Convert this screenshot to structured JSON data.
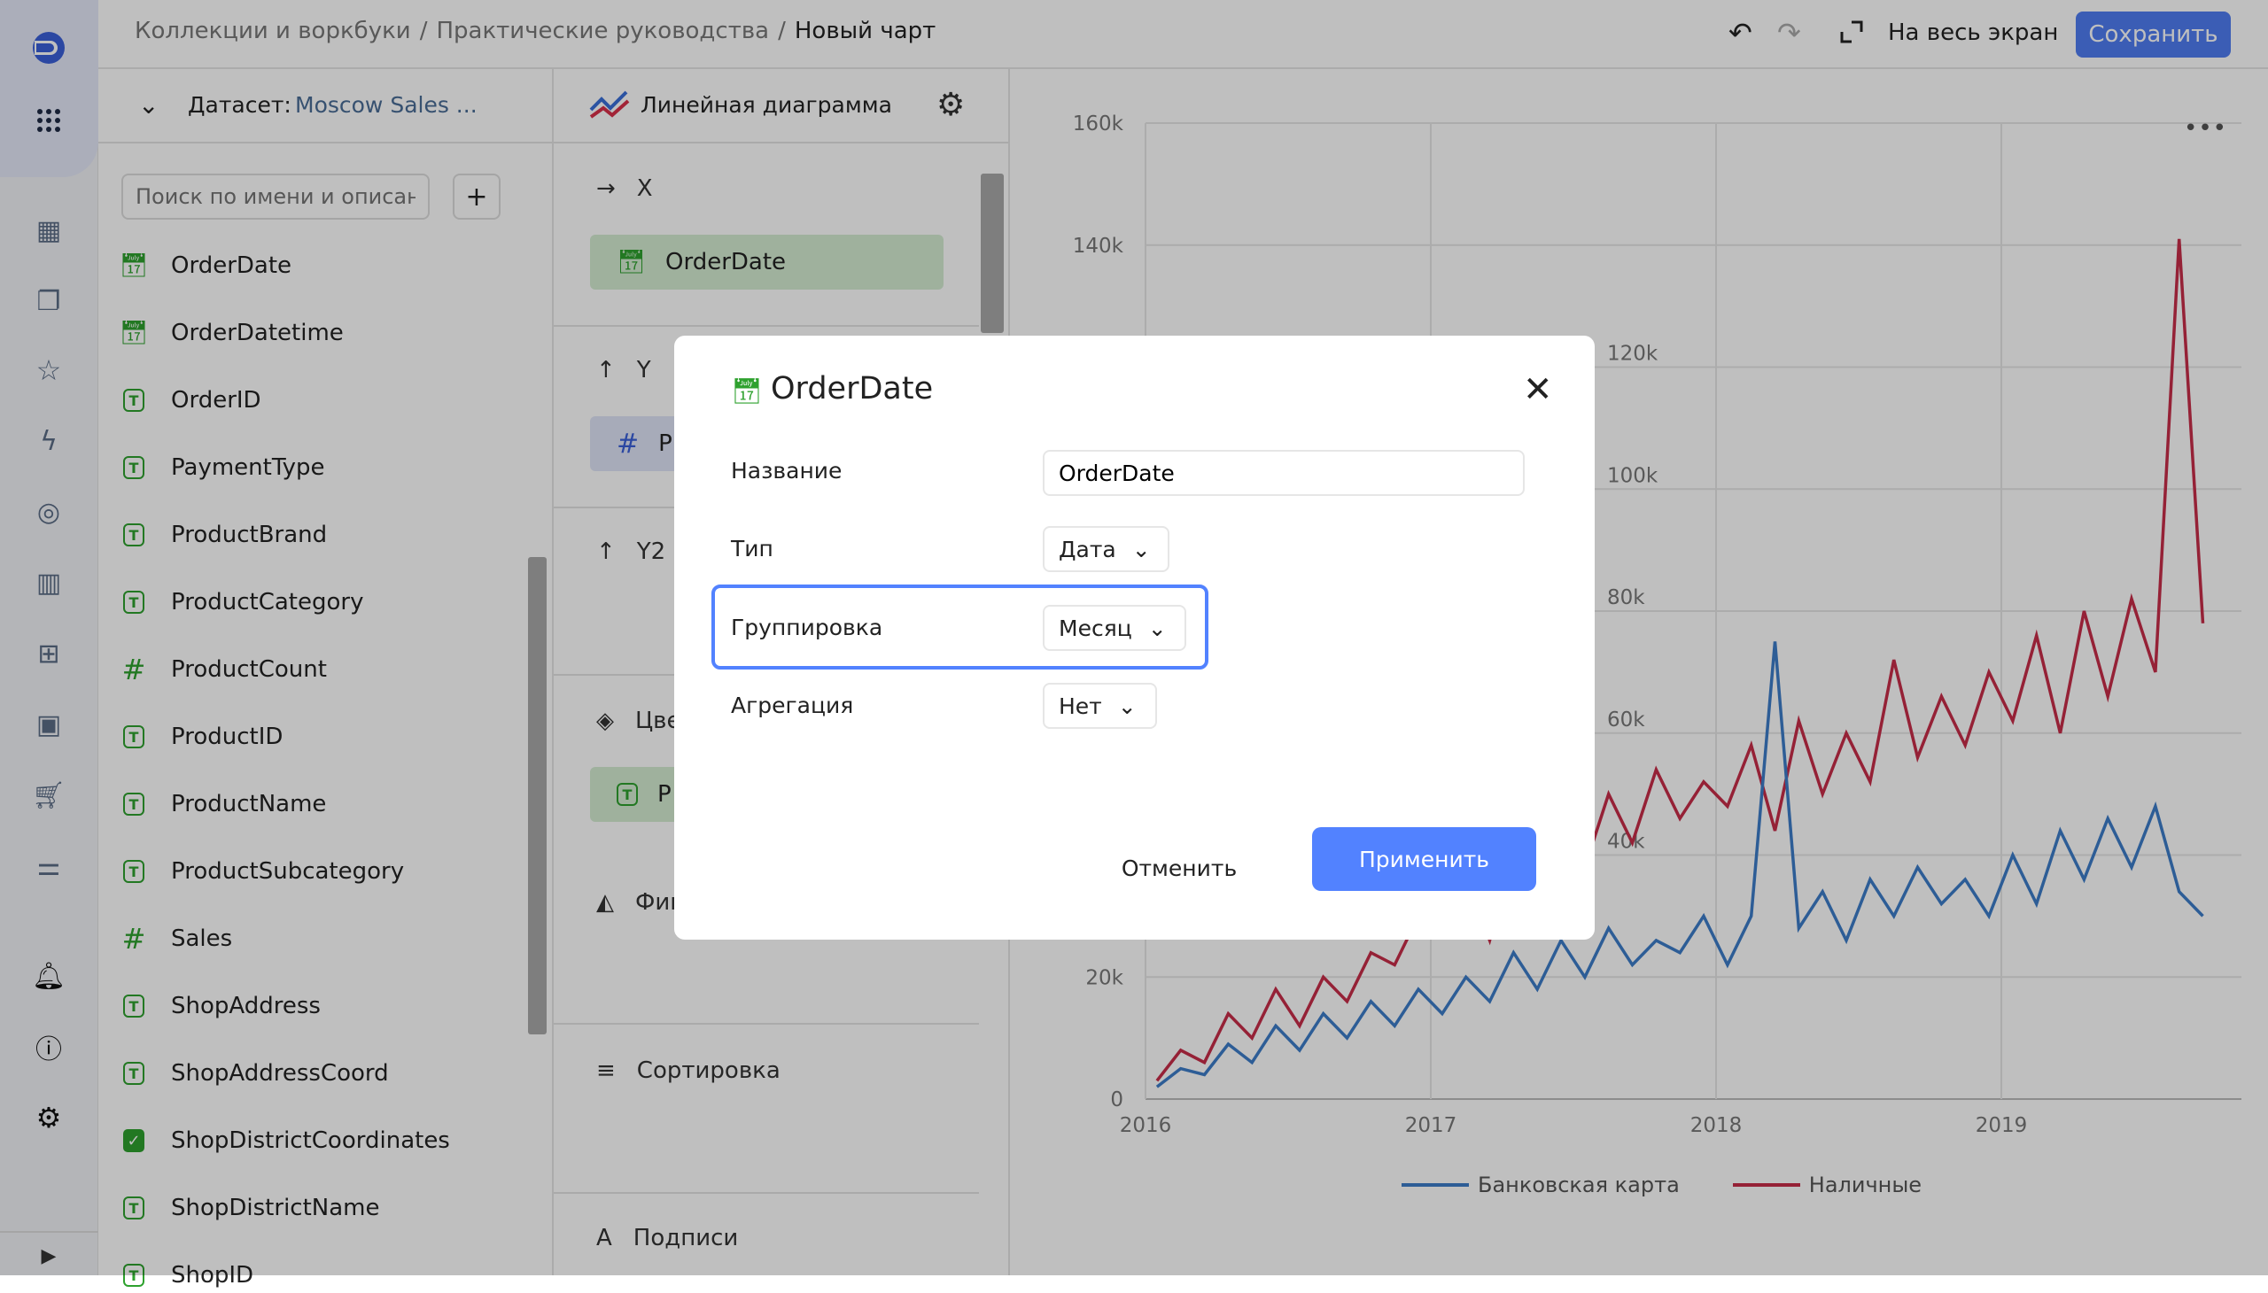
{
  "header": {
    "breadcrumbs": [
      "Коллекции и воркбуки",
      "Практические руководства",
      "Новый чарт"
    ],
    "fullscreen_label": "На весь экран",
    "save_label": "Сохранить"
  },
  "rail": {
    "icons": [
      "logo-icon",
      "apps-grid-icon",
      "dashboards-icon",
      "collections-icon",
      "favorites-icon",
      "lightning-icon",
      "connections-icon",
      "charts-icon",
      "datasets-icon",
      "folder-icon",
      "cart-icon",
      "settings-sliders-icon",
      "bell-icon",
      "help-icon",
      "gear-icon",
      "expand-icon"
    ]
  },
  "fields": {
    "dataset_label": "Датасет:",
    "dataset_name": "Moscow Sales ...",
    "search_placeholder": "Поиск по имени и описанию",
    "items": [
      {
        "name": "OrderDate",
        "type": "date"
      },
      {
        "name": "OrderDatetime",
        "type": "date"
      },
      {
        "name": "OrderID",
        "type": "text"
      },
      {
        "name": "PaymentType",
        "type": "text"
      },
      {
        "name": "ProductBrand",
        "type": "text"
      },
      {
        "name": "ProductCategory",
        "type": "text"
      },
      {
        "name": "ProductCount",
        "type": "number"
      },
      {
        "name": "ProductID",
        "type": "text"
      },
      {
        "name": "ProductName",
        "type": "text"
      },
      {
        "name": "ProductSubcategory",
        "type": "text"
      },
      {
        "name": "Sales",
        "type": "number"
      },
      {
        "name": "ShopAddress",
        "type": "text"
      },
      {
        "name": "ShopAddressCoord",
        "type": "text"
      },
      {
        "name": "ShopDistrictCoordinates",
        "type": "geo"
      },
      {
        "name": "ShopDistrictName",
        "type": "text"
      },
      {
        "name": "ShopID",
        "type": "text"
      }
    ]
  },
  "visual": {
    "chart_type": "Линейная диаграмма",
    "x_label": "X",
    "x_chip": "OrderDate",
    "y_label": "Y",
    "y_chip": "P",
    "y2_label": "Y2",
    "colors_label": "Цвета",
    "colors_chip": "P",
    "shapes_label": "Фигуры",
    "sort_label": "Сортировка",
    "labels_label": "Подписи"
  },
  "modal": {
    "title": "OrderDate",
    "name_label": "Название",
    "name_value": "OrderDate",
    "type_label": "Тип",
    "type_value": "Дата",
    "grouping_label": "Группировка",
    "grouping_value": "Месяц",
    "aggregation_label": "Агрегация",
    "aggregation_value": "Нет",
    "cancel_label": "Отменить",
    "apply_label": "Применить",
    "accent": "#5282ff"
  },
  "chart_data": {
    "type": "line",
    "x_ticks": [
      "2016",
      "2017",
      "2018",
      "2019"
    ],
    "y_ticks": [
      "0",
      "20k",
      "40k",
      "60k",
      "80k",
      "100k",
      "120k",
      "140k",
      "160k"
    ],
    "ylim": [
      0,
      160000
    ],
    "grid": true,
    "legend": "bottom",
    "x": [
      "2016-01",
      "2016-02",
      "2016-03",
      "2016-04",
      "2016-05",
      "2016-06",
      "2016-07",
      "2016-08",
      "2016-09",
      "2016-10",
      "2016-11",
      "2016-12",
      "2017-01",
      "2017-02",
      "2017-03",
      "2017-04",
      "2017-05",
      "2017-06",
      "2017-07",
      "2017-08",
      "2017-09",
      "2017-10",
      "2017-11",
      "2017-12",
      "2018-01",
      "2018-02",
      "2018-03",
      "2018-04",
      "2018-05",
      "2018-06",
      "2018-07",
      "2018-08",
      "2018-09",
      "2018-10",
      "2018-11",
      "2018-12",
      "2019-01",
      "2019-02",
      "2019-03",
      "2019-04",
      "2019-05",
      "2019-06",
      "2019-07",
      "2019-08",
      "2019-09"
    ],
    "series": [
      {
        "name": "Банковская карта",
        "color": "#3d7cc9",
        "values": [
          2000,
          5000,
          4000,
          9000,
          6000,
          12000,
          8000,
          14000,
          10000,
          16000,
          12000,
          18000,
          14000,
          20000,
          16000,
          24000,
          18000,
          26000,
          20000,
          28000,
          22000,
          26000,
          24000,
          30000,
          22000,
          30000,
          75000,
          28000,
          34000,
          26000,
          36000,
          30000,
          38000,
          32000,
          36000,
          30000,
          40000,
          32000,
          44000,
          36000,
          46000,
          38000,
          48000,
          34000,
          30000
        ]
      },
      {
        "name": "Наличные",
        "color": "#c72c48",
        "values": [
          3000,
          8000,
          6000,
          14000,
          10000,
          18000,
          12000,
          20000,
          16000,
          24000,
          22000,
          30000,
          28000,
          36000,
          26000,
          40000,
          34000,
          46000,
          38000,
          50000,
          42000,
          54000,
          46000,
          52000,
          48000,
          58000,
          44000,
          62000,
          50000,
          60000,
          52000,
          72000,
          56000,
          66000,
          58000,
          70000,
          62000,
          76000,
          60000,
          80000,
          66000,
          82000,
          70000,
          141000,
          78000
        ]
      }
    ]
  }
}
